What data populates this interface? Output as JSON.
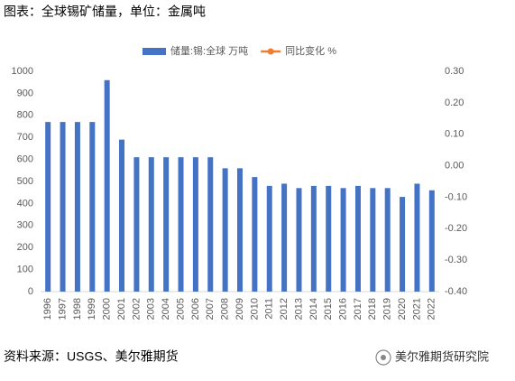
{
  "title": "图表：全球锡矿储量，单位：金属吨",
  "source": "资料来源：USGS、美尔雅期货",
  "watermark": "美尔雅期货研究院",
  "chart_data": {
    "type": "bar",
    "categories": [
      "1996",
      "1997",
      "1998",
      "1999",
      "2000",
      "2001",
      "2002",
      "2003",
      "2004",
      "2005",
      "2006",
      "2007",
      "2008",
      "2009",
      "2010",
      "2011",
      "2012",
      "2013",
      "2014",
      "2015",
      "2016",
      "2017",
      "2018",
      "2019",
      "2020",
      "2021",
      "2022"
    ],
    "series": [
      {
        "name": "储量:锡:全球 万吨",
        "color": "#4472c4",
        "values": [
          770,
          770,
          770,
          770,
          960,
          690,
          610,
          610,
          610,
          610,
          610,
          610,
          560,
          560,
          520,
          480,
          490,
          470,
          480,
          480,
          470,
          480,
          470,
          470,
          430,
          490,
          460
        ]
      },
      {
        "name": "同比变化 %",
        "color": "#ed7d31",
        "axis": "y2",
        "values": [
          null,
          null,
          null,
          null,
          null,
          null,
          null,
          null,
          null,
          null,
          null,
          null,
          null,
          null,
          null,
          null,
          null,
          null,
          null,
          null,
          null,
          null,
          null,
          null,
          null,
          null,
          null
        ]
      }
    ],
    "ylim": [
      0,
      1000
    ],
    "yticks": [
      0,
      100,
      200,
      300,
      400,
      500,
      600,
      700,
      800,
      900,
      1000
    ],
    "y2lim": [
      -0.4,
      0.3
    ],
    "y2ticks": [
      {
        "value": -0.4,
        "label": "-0.40"
      },
      {
        "value": -0.3,
        "label": "-0.30"
      },
      {
        "value": -0.2,
        "label": "-0.20"
      },
      {
        "value": -0.1,
        "label": "-0.10"
      },
      {
        "value": 0,
        "label": "0.00"
      },
      {
        "value": 0.1,
        "label": "0.10"
      },
      {
        "value": 0.2,
        "label": "0.20"
      },
      {
        "value": 0.3,
        "label": "0.30"
      }
    ],
    "grid": false,
    "legend": "top"
  }
}
